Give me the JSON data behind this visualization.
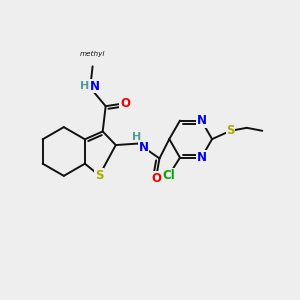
{
  "bg_color": "#eeeeee",
  "bond_color": "#111111",
  "bond_width": 1.4,
  "atom_colors": {
    "N": "#0000ee",
    "O": "#ee0000",
    "S": "#aaaa00",
    "Cl": "#00aa00",
    "H": "#559999",
    "C": "#111111"
  },
  "font_size": 8.5
}
